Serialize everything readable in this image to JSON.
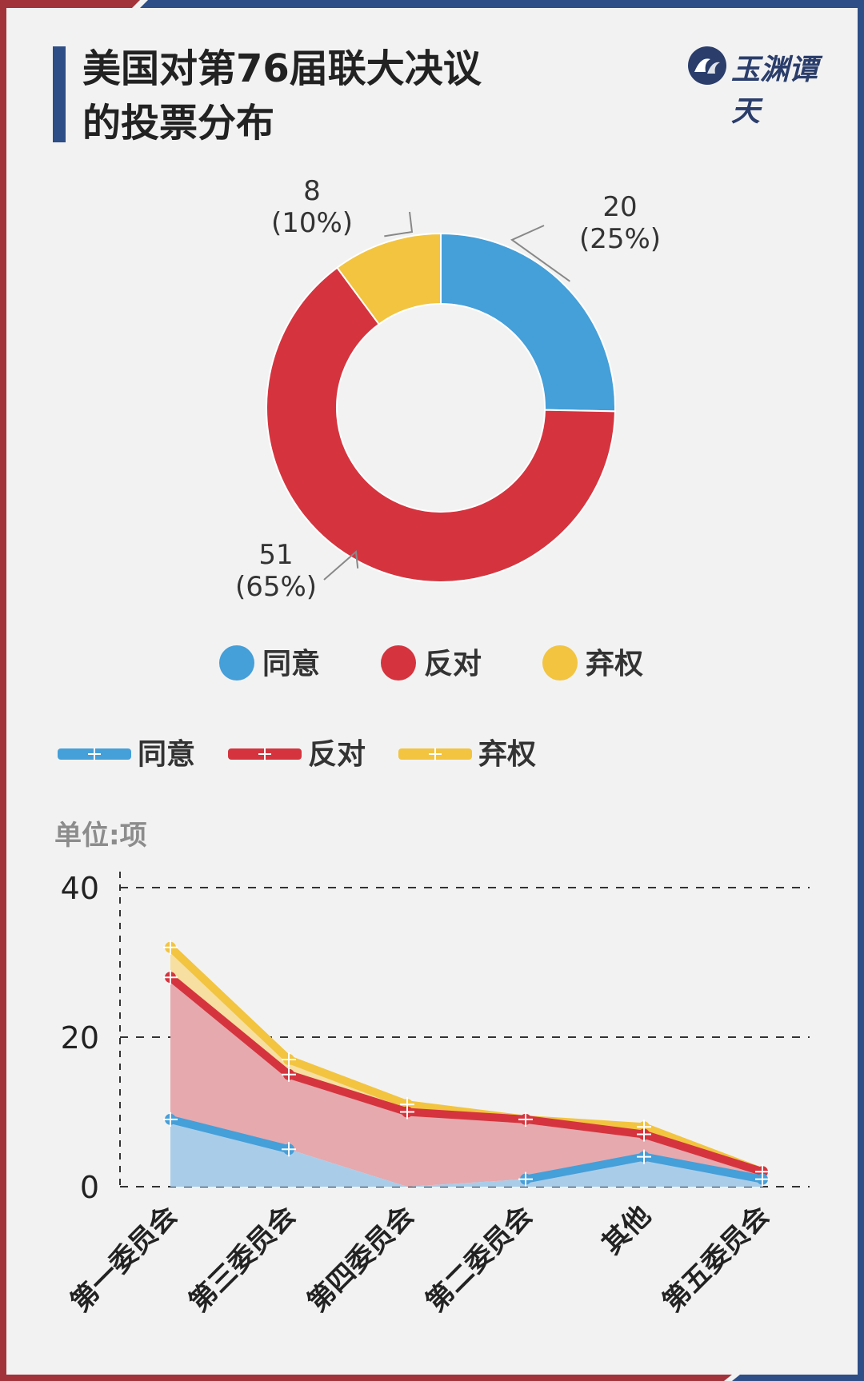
{
  "title": {
    "line1": "美国对第76届联大决议",
    "line2": "的投票分布"
  },
  "logo": {
    "text": "玉渊谭天",
    "icon": "wave-emblem-icon"
  },
  "colors": {
    "agree": "#459fd9",
    "oppose": "#d5343e",
    "abstain": "#f2c440",
    "frame_red": "#a3333a",
    "frame_blue": "#2d4e87",
    "title_accent": "#2d4e87"
  },
  "donut": {
    "legend": [
      {
        "label": "同意",
        "color": "#459fd9"
      },
      {
        "label": "反对",
        "color": "#d5343e"
      },
      {
        "label": "弃权",
        "color": "#f2c440"
      }
    ]
  },
  "line_chart": {
    "unit_label": "单位:项",
    "legend": [
      {
        "label": "同意",
        "color": "#459fd9"
      },
      {
        "label": "反对",
        "color": "#d5343e"
      },
      {
        "label": "弃权",
        "color": "#f2c440"
      }
    ]
  },
  "chart_data": [
    {
      "type": "pie",
      "variant": "donut",
      "categories": [
        "同意",
        "反对",
        "弃权"
      ],
      "values": [
        20,
        51,
        8
      ],
      "percent_labels": [
        "(25%)",
        "(65%)",
        "(10%)"
      ],
      "value_labels": [
        "20",
        "51",
        "8"
      ],
      "legend_position": "bottom"
    },
    {
      "type": "area",
      "categories": [
        "第一委员会",
        "第三委员会",
        "第四委员会",
        "第二委员会",
        "其他",
        "第五委员会"
      ],
      "series": [
        {
          "name": "同意",
          "values": [
            9,
            5,
            0,
            1,
            4,
            1
          ]
        },
        {
          "name": "反对",
          "values": [
            28,
            15,
            10,
            9,
            7,
            2
          ]
        },
        {
          "name": "弃权",
          "values": [
            32,
            17,
            11,
            9,
            8,
            2
          ]
        }
      ],
      "yticks": [
        0,
        20,
        40
      ],
      "ylim": [
        0,
        40
      ],
      "grid": "dashed horizontal",
      "legend_position": "top"
    }
  ]
}
